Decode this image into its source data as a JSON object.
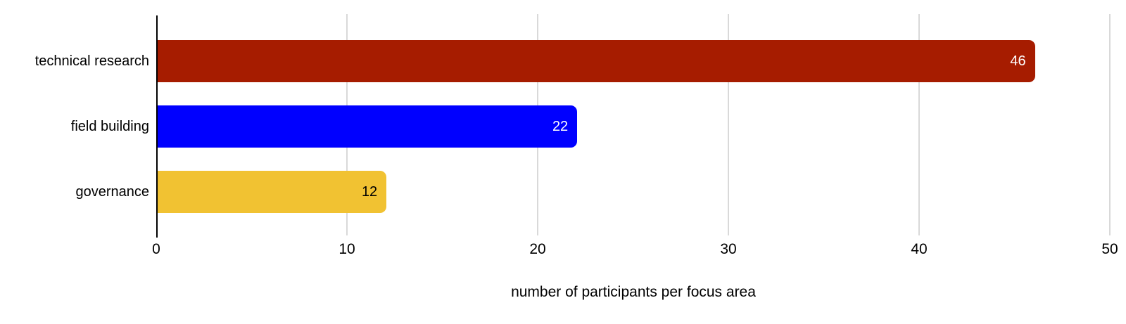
{
  "chart_data": {
    "type": "bar",
    "orientation": "horizontal",
    "title": "",
    "xlabel": "number of participants per focus area",
    "ylabel": "",
    "categories": [
      "technical research",
      "field building",
      "governance"
    ],
    "values": [
      46,
      22,
      12
    ],
    "bar_colors": [
      "#a61c00",
      "#0000ff",
      "#f1c232"
    ],
    "value_label_colors": [
      "#ffffff",
      "#ffffff",
      "#000000"
    ],
    "xticks": [
      0,
      10,
      20,
      30,
      40,
      50
    ],
    "xlim": [
      0,
      50.8
    ],
    "grid": true,
    "legend": "none"
  },
  "colors": {
    "background": "#ffffff",
    "gridline": "#d9d9d9",
    "axis_line": "#000000",
    "text": "#000000"
  }
}
